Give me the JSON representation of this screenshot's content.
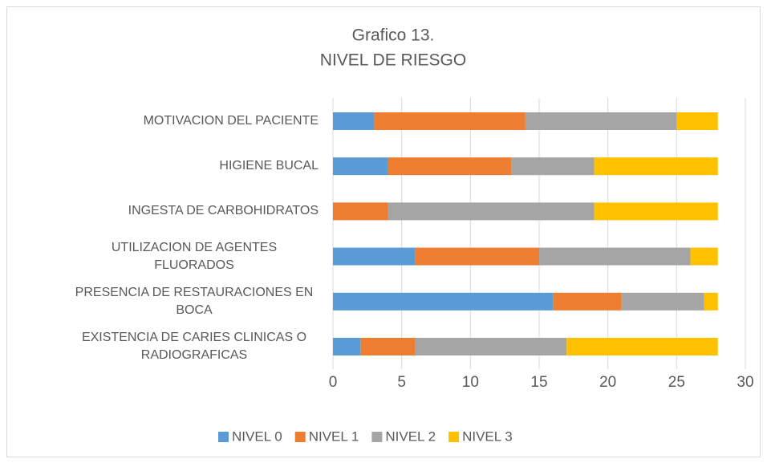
{
  "chart_data": {
    "type": "stacked_barh",
    "title": "Grafico 13.",
    "subtitle": "NIVEL DE RIESGO",
    "categories": [
      "MOTIVACION DEL PACIENTE",
      "HIGIENE BUCAL",
      "INGESTA DE CARBOHIDRATOS",
      "UTILIZACION DE AGENTES FLUORADOS",
      "PRESENCIA DE RESTAURACIONES EN BOCA",
      "EXISTENCIA DE CARIES CLINICAS O RADIOGRAFICAS"
    ],
    "series": [
      {
        "name": "NIVEL 0",
        "color": "#5b9bd5",
        "values": [
          3,
          4,
          0,
          6,
          16,
          2
        ]
      },
      {
        "name": "NIVEL 1",
        "color": "#ed7d31",
        "values": [
          11,
          9,
          4,
          9,
          5,
          4
        ]
      },
      {
        "name": "NIVEL 2",
        "color": "#a5a5a5",
        "values": [
          11,
          6,
          15,
          11,
          6,
          11
        ]
      },
      {
        "name": "NIVEL 3",
        "color": "#ffc000",
        "values": [
          3,
          9,
          9,
          2,
          1,
          11
        ]
      }
    ],
    "xlim": [
      0,
      30
    ],
    "xticks": [
      0,
      5,
      10,
      15,
      20,
      25,
      30
    ],
    "grid": true,
    "legend": "bottom"
  }
}
